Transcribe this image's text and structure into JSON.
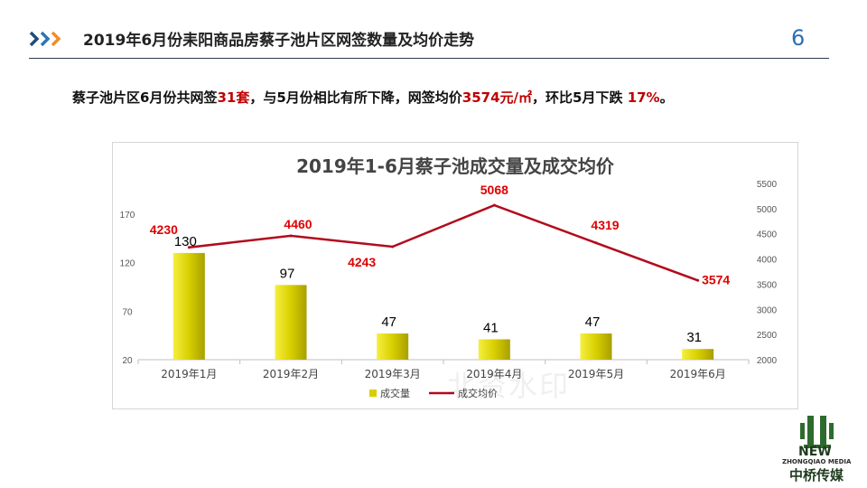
{
  "header": {
    "title": "2019年6月份耒阳商品房蔡子池片区网签数量及均价走势",
    "page_number": "6"
  },
  "summary": {
    "part1": "蔡子池片区6月份共网签",
    "count": "31套",
    "part2": "，与5月份相比有所下降，网签均价",
    "price": "3574元/㎡",
    "part3": "，环比5月下跌 ",
    "change": "17%",
    "part4": "。"
  },
  "watermark_text": "北资水印",
  "logo": {
    "brand": "NEW",
    "sub": "ZHONGQIAO MEDIA",
    "name": "中桥传媒"
  },
  "chart_data": {
    "type": "bar",
    "title": "2019年1-6月蔡子池成交量及成交均价",
    "categories": [
      "2019年1月",
      "2019年2月",
      "2019年3月",
      "2019年4月",
      "2019年5月",
      "2019年6月"
    ],
    "series": [
      {
        "name": "成交量",
        "type": "bar",
        "axis": "left",
        "values": [
          130,
          97,
          47,
          41,
          47,
          31
        ]
      },
      {
        "name": "成交均价",
        "type": "line",
        "axis": "right",
        "values": [
          4230,
          4460,
          4243,
          5068,
          4319,
          3574
        ]
      }
    ],
    "y_left": {
      "ticks": [
        20,
        70,
        120,
        170
      ],
      "range": [
        20,
        170
      ]
    },
    "y_right": {
      "ticks": [
        2000,
        2500,
        3000,
        3500,
        4000,
        4500,
        5000,
        5500
      ],
      "range": [
        2000,
        5500
      ]
    },
    "legend": "bottom",
    "grid": false,
    "colors": {
      "bar": "#d8cf00",
      "bar_highlight": "#f6ef3e",
      "line": "#b30a1c",
      "line_label": "#e00000",
      "bar_label": "#000000"
    }
  }
}
